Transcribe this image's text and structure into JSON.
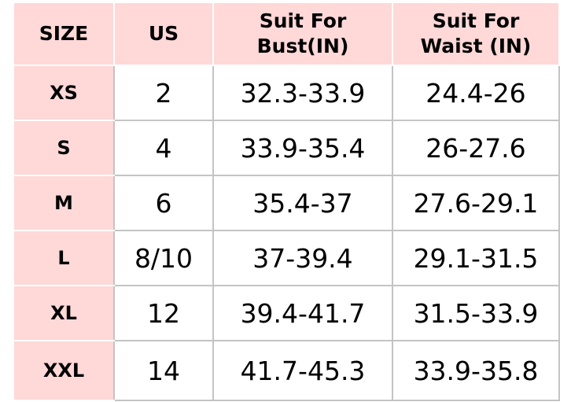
{
  "headers": [
    "SIZE",
    "US",
    "Suit For\nBust(IN)",
    "Suit For\nWaist (IN)"
  ],
  "header_lines": {
    "bust": [
      "Suit For",
      "Bust(IN)"
    ],
    "waist": [
      "Suit For",
      "Waist (IN)"
    ]
  },
  "rows": [
    {
      "size": "XS",
      "us": "2",
      "bust": "32.3-33.9",
      "waist": "24.4-26"
    },
    {
      "size": "S",
      "us": "4",
      "bust": "33.9-35.4",
      "waist": "26-27.6"
    },
    {
      "size": "M",
      "us": "6",
      "bust": "35.4-37",
      "waist": "27.6-29.1"
    },
    {
      "size": "L",
      "us": "8/10",
      "bust": "37-39.4",
      "waist": "29.1-31.5"
    },
    {
      "size": "XL",
      "us": "12",
      "bust": "39.4-41.7",
      "waist": "31.5-33.9"
    },
    {
      "size": "XXL",
      "us": "14",
      "bust": "41.7-45.3",
      "waist": "33.9-35.8"
    }
  ],
  "colors": {
    "header_bg": "#ffd8d8",
    "grid": "#c4c4c4"
  }
}
